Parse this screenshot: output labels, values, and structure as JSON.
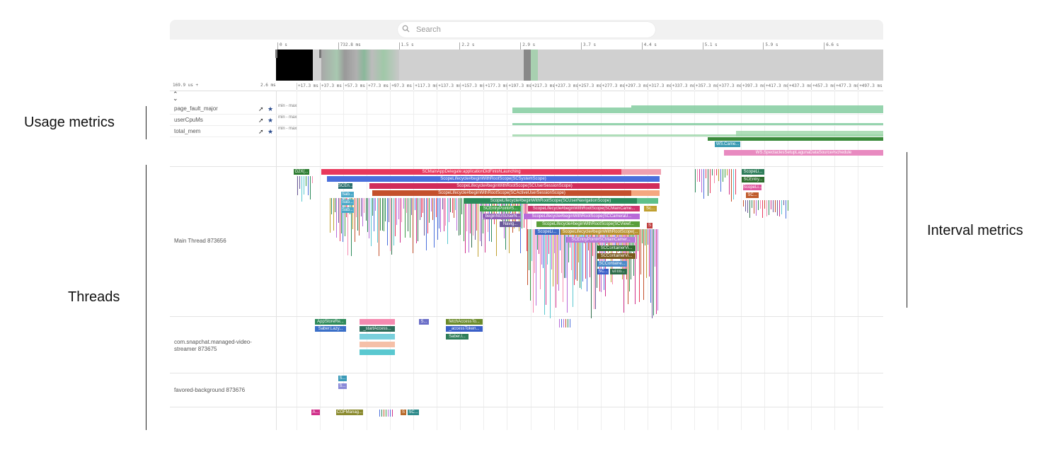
{
  "annotations": {
    "usage_metrics": "Usage metrics",
    "threads": "Threads",
    "interval_metrics": "Interval metrics"
  },
  "search": {
    "placeholder": "Search",
    "icon": "search-icon"
  },
  "overview_axis": [
    "0 s",
    "732.8 ms",
    "1.5 s",
    "2.2 s",
    "2.9 s",
    "3.7 s",
    "4.4 s",
    "5.1 s",
    "5.9 s",
    "6.6 s"
  ],
  "ruler": {
    "left_start": "169.9 us +",
    "left_end": "2.6 ms",
    "ticks": [
      "+17.3 ms",
      "+37.3 ms",
      "+57.3 ms",
      "+77.3 ms",
      "+97.3 ms",
      "+117.3 ms",
      "+137.3 ms",
      "+157.3 ms",
      "+177.3 ms",
      "+197.3 ms",
      "+217.3 ms",
      "+237.3 ms",
      "+257.3 ms",
      "+277.3 ms",
      "+297.3 ms",
      "+317.3 ms",
      "+337.3 ms",
      "+357.3 ms",
      "+377.3 ms",
      "+397.3 ms",
      "+417.3 ms",
      "+437.3 ms",
      "+457.3 ms",
      "+477.3 ms",
      "+497.3 ms"
    ]
  },
  "metrics": [
    {
      "name": "page_fault_major",
      "range": "min - max"
    },
    {
      "name": "userCpuMs",
      "range": "min - max"
    },
    {
      "name": "total_mem",
      "range": "min - max"
    }
  ],
  "interval_slices": [
    {
      "label": "WS.Came...",
      "color": "#3b9ab2"
    },
    {
      "label": "WS.SpectaclesSetupLagunaDataSource#schedule",
      "color": "#e88ac0"
    }
  ],
  "threads": [
    {
      "name": "Main Thread 873656"
    },
    {
      "name": "com.snapchat.managed-video-streamer 873675"
    },
    {
      "name": "favored-background 873676"
    }
  ],
  "main_slices": [
    {
      "label": "G2X(...",
      "color": "#2e7d32"
    },
    {
      "label": "SCMainAppDelegate:applicationDidFinishLaunching",
      "color": "#e8385c"
    },
    {
      "label": "ScopeLifecycle#beginWithRootScope(SCSystemScope)",
      "color": "#4a6fdc"
    },
    {
      "label": "SCEn...",
      "color": "#2b6f6f"
    },
    {
      "label": "ScopeLifecycle#beginWithRootScope(SCUserSessionScope)",
      "color": "#d12c5a"
    },
    {
      "label": "ScopeLifecycle#beginWithRootScope(SCActiveUserSessionScope)",
      "color": "#c4502c"
    },
    {
      "label": "ScopeLifecycle#beginWithRootScope(SCUserNavigationScope)",
      "color": "#2b8a5a"
    },
    {
      "label": "SCEntryPoint#S...",
      "color": "#3a9b46"
    },
    {
      "label": "ScopeLifecycle#beginWithRootScope(SCMainCame...",
      "color": "#d0356e"
    },
    {
      "label": "_beginNGSUserN...",
      "color": "#8d5db5"
    },
    {
      "label": "ScopeLifecycle#beginWithRootScope(SCCameraU...",
      "color": "#b86ad8"
    },
    {
      "label": "Navig...",
      "color": "#6b5b9a"
    },
    {
      "label": "ScopeLifecycle#beginWithRootScope(SCViewf...",
      "color": "#5a9e3a"
    },
    {
      "label": "ScopeLi...",
      "color": "#3d6bc6"
    },
    {
      "label": "ScopeLifecycle#beginWithRootScope(...",
      "color": "#b8922e"
    },
    {
      "label": "SCEntryPoint#SCMainCamer...",
      "color": "#b67ad8"
    },
    {
      "label": "SCContainerVi...",
      "color": "#2f6b2f"
    },
    {
      "label": "SCContainerVi...",
      "color": "#7a5a1e"
    },
    {
      "label": "SCContaine...",
      "color": "#4a8ac8"
    },
    {
      "label": "SC...",
      "color": "#3a5fc8"
    },
    {
      "label": "ui:co...",
      "color": "#2e6d4a"
    },
    {
      "label": "Sab...",
      "color": "#4aa8c8"
    },
    {
      "label": "Sc...",
      "color": "#c0a030"
    },
    {
      "label": "S",
      "color": "#c04040"
    },
    {
      "label": "ScopeLi...",
      "color": "#2e7d5a"
    },
    {
      "label": "SCEntry...",
      "color": "#2e6d2e"
    },
    {
      "label": "ScopeLi...",
      "color": "#e05aa0"
    },
    {
      "label": "SC...",
      "color": "#c05a2a"
    }
  ],
  "streamer_slices": [
    {
      "label": "AppStoreRe...",
      "color": "#2e8a5a"
    },
    {
      "label": "Saber.Lazy...",
      "color": "#3a6fc8"
    },
    {
      "label": "_startAccess...",
      "color": "#2e6d5a"
    },
    {
      "label": "fetchAccessTo...",
      "color": "#6a8a2a"
    },
    {
      "label": "_accessToken...",
      "color": "#3a5fc8"
    },
    {
      "label": "Saber.l...",
      "color": "#2e7d5a"
    },
    {
      "label": "S...",
      "color": "#6b6fc8"
    }
  ],
  "favored_slices": [
    {
      "label": "S...",
      "color": "#3a9ab8"
    },
    {
      "label": "S...",
      "color": "#8a8ad8"
    }
  ],
  "bottom_slices": [
    {
      "label": "A...",
      "color": "#d0308a"
    },
    {
      "label": "COFManag...",
      "color": "#8a8a2e"
    },
    {
      "label": "S",
      "color": "#b86a2a"
    },
    {
      "label": "SC...",
      "color": "#2e8a8a"
    }
  ]
}
